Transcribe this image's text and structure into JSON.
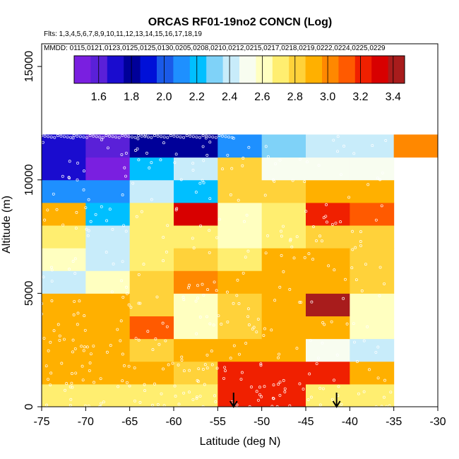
{
  "chart_data": {
    "type": "heatmap",
    "title": "ORCAS RF01-19no2 CONCN (Log)",
    "subtitle_flights": "Flts: 1,3,4,5,6,7,8,9,10,11,12,13,14,15,16,17,18,19",
    "subtitle_dates": "MMDD: 0115,0121,0123,0125,0125,0130,0205,0208,0210,0212,0215,0217,0218,0219,0222,0224,0225,0229",
    "xlabel": "Latitude (deg N)",
    "ylabel": "Altitude (m)",
    "xlim": [
      -75,
      -30
    ],
    "ylim": [
      0,
      16000
    ],
    "x_ticks": [
      -75,
      -70,
      -65,
      -60,
      -55,
      -50,
      -45,
      -40,
      -35,
      -30
    ],
    "y_ticks": [
      0,
      5000,
      10000,
      15000
    ],
    "x_bin_edges": [
      -75,
      -70,
      -65,
      -60,
      -55,
      -50,
      -45,
      -40,
      -35,
      -30
    ],
    "y_bin_edges": [
      0,
      1000,
      2000,
      3000,
      4000,
      5000,
      6000,
      7000,
      8000,
      9000,
      10000,
      11000,
      12000
    ],
    "values_log10": [
      [
        2.72,
        2.7,
        2.75,
        2.72,
        3.22,
        3.22,
        2.75,
        2.72,
        null
      ],
      [
        2.9,
        2.92,
        2.88,
        2.85,
        3.2,
        3.2,
        3.2,
        2.92,
        null
      ],
      [
        2.88,
        2.88,
        2.82,
        2.88,
        2.88,
        2.9,
        2.55,
        2.45,
        null
      ],
      [
        2.92,
        2.88,
        3.08,
        2.62,
        2.85,
        2.95,
        2.88,
        2.6,
        null
      ],
      [
        2.95,
        2.88,
        2.85,
        2.65,
        2.8,
        2.95,
        3.45,
        2.62,
        null
      ],
      [
        2.4,
        2.62,
        2.85,
        3.0,
        2.9,
        2.95,
        2.9,
        2.78,
        null
      ],
      [
        2.62,
        2.45,
        2.75,
        2.8,
        2.75,
        2.88,
        2.88,
        2.85,
        null
      ],
      [
        2.7,
        2.45,
        2.7,
        2.72,
        2.58,
        2.68,
        2.85,
        2.85,
        null
      ],
      [
        2.9,
        2.25,
        2.7,
        3.3,
        2.62,
        2.7,
        3.2,
        3.12,
        null
      ],
      [
        2.15,
        2.15,
        2.38,
        2.22,
        2.78,
        2.8,
        2.9,
        2.88,
        null
      ],
      [
        1.68,
        1.55,
        2.18,
        2.4,
        2.82,
        2.48,
        2.48,
        2.48,
        null
      ],
      [
        1.68,
        1.6,
        1.85,
        1.85,
        2.15,
        2.28,
        2.4,
        2.45,
        3.0
      ]
    ],
    "colorbar": {
      "min": 1.45,
      "max": 3.47,
      "tick_labels": [
        "1.6",
        "1.8",
        "2.0",
        "2.2",
        "2.4",
        "2.6",
        "2.8",
        "3.0",
        "3.2",
        "3.4"
      ],
      "tick_values": [
        1.6,
        1.8,
        2.0,
        2.2,
        2.4,
        2.6,
        2.8,
        3.0,
        3.2,
        3.4
      ],
      "colors": [
        "#7a1fe0",
        "#5a20d8",
        "#1a0ccf",
        "#000099",
        "#0010d8",
        "#1a5ae8",
        "#1e90ff",
        "#00bfff",
        "#7fd2f8",
        "#c8ecfa",
        "#f8fdf0",
        "#ffffc0",
        "#ffee70",
        "#ffd23a",
        "#ffb000",
        "#ff8800",
        "#ff5a00",
        "#f02000",
        "#d80000",
        "#a81c1c"
      ]
    },
    "markers_latitude": [
      -53.2,
      -41.5
    ]
  }
}
